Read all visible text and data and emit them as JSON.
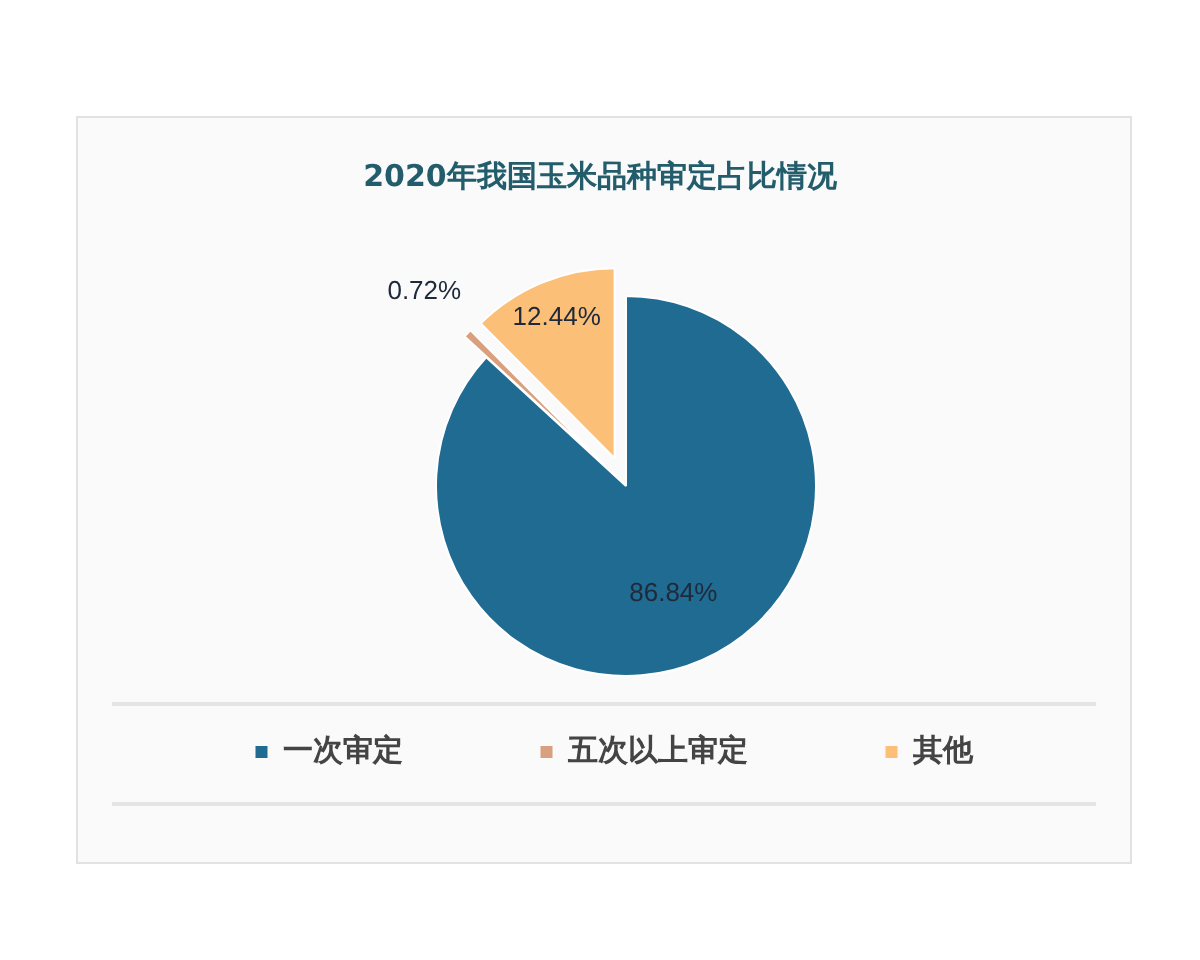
{
  "chart_data": {
    "type": "pie",
    "title": "2020年我国玉米品种审定占比情况",
    "categories": [
      "一次审定",
      "五次以上审定",
      "其他"
    ],
    "values": [
      86.84,
      0.72,
      12.44
    ],
    "colors": [
      "#1f6b92",
      "#d9a07f",
      "#fbbf77"
    ],
    "value_labels": [
      "86.84%",
      "0.72%",
      "12.44%"
    ],
    "legend": "bottom"
  }
}
